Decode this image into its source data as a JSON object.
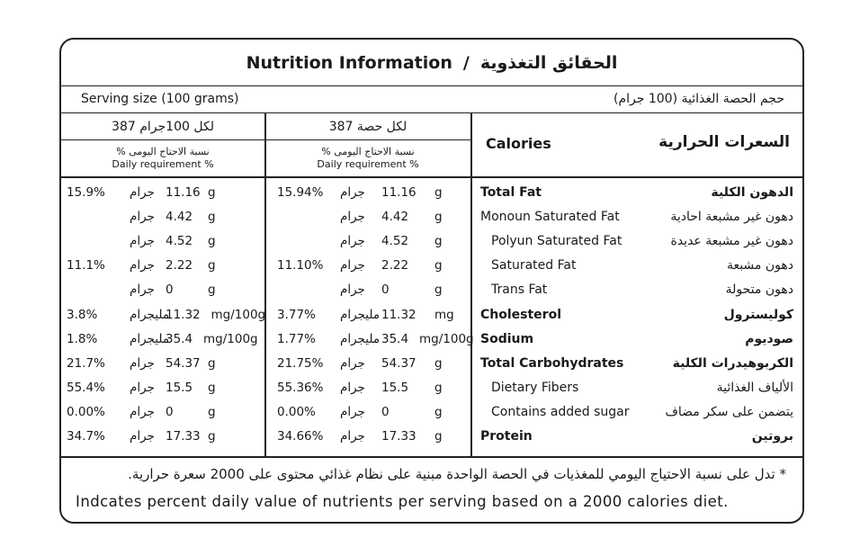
{
  "title": {
    "en": "Nutrition Information",
    "separator": "/",
    "ar": "الحقائق التغذوية"
  },
  "serving": {
    "en": "Serving size (100 grams)",
    "ar": "حجم الحصة الغذائية (100 جرام)"
  },
  "columns": {
    "per100": {
      "header": "لكل 100جرام 387",
      "sub_ar": "نسبة الاحتاج اليومى %",
      "sub_en": "Daily requirement %"
    },
    "perServing": {
      "header": "لكل حصة 387",
      "sub_ar": "نسبة الاحتاج اليومى %",
      "sub_en": "Daily requirement %"
    }
  },
  "calories": {
    "en": "Calories",
    "ar": "السعرات الحرارية"
  },
  "rows": [
    {
      "en": "Total Fat",
      "ar": "الدهون الكلية",
      "bold": true,
      "indent": false,
      "c100": {
        "pct": "15.9%",
        "unit_ar": "جرام",
        "value": "11.16",
        "unit": "g"
      },
      "cs": {
        "pct": "15.94%",
        "unit_ar": "جرام",
        "value": "11.16",
        "unit": "g"
      }
    },
    {
      "en": "Monoun Saturated Fat",
      "ar": "دهون غير مشبعة احادية",
      "bold": false,
      "indent": false,
      "c100": {
        "pct": "",
        "unit_ar": "جرام",
        "value": "4.42",
        "unit": "g"
      },
      "cs": {
        "pct": "",
        "unit_ar": "جرام",
        "value": "4.42",
        "unit": "g"
      }
    },
    {
      "en": "Polyun Saturated Fat",
      "ar": "دهون غير مشبعة عديدة",
      "bold": false,
      "indent": true,
      "c100": {
        "pct": "",
        "unit_ar": "جرام",
        "value": "4.52",
        "unit": "g"
      },
      "cs": {
        "pct": "",
        "unit_ar": "جرام",
        "value": "4.52",
        "unit": "g"
      }
    },
    {
      "en": "Saturated Fat",
      "ar": "دهون مشبعة",
      "bold": false,
      "indent": true,
      "c100": {
        "pct": "11.1%",
        "unit_ar": "جرام",
        "value": "2.22",
        "unit": "g"
      },
      "cs": {
        "pct": "11.10%",
        "unit_ar": "جرام",
        "value": "2.22",
        "unit": "g"
      }
    },
    {
      "en": "Trans Fat",
      "ar": "دهون متحولة",
      "bold": false,
      "indent": true,
      "c100": {
        "pct": "",
        "unit_ar": "جرام",
        "value": "0",
        "unit": "g"
      },
      "cs": {
        "pct": "",
        "unit_ar": "جرام",
        "value": "0",
        "unit": "g"
      }
    },
    {
      "en": "Cholesterol",
      "ar": "كوليسترول",
      "bold": true,
      "indent": false,
      "c100": {
        "pct": "3.8%",
        "unit_ar": "مليجرام",
        "value": "11.32",
        "unit": "mg/100g"
      },
      "cs": {
        "pct": "3.77%",
        "unit_ar": "مليجرام",
        "value": "11.32",
        "unit": "mg"
      }
    },
    {
      "en": "Sodium",
      "ar": "صوديوم",
      "bold": true,
      "indent": false,
      "c100": {
        "pct": "1.8%",
        "unit_ar": "مليجرام",
        "value": "35.4",
        "unit": "mg/100g"
      },
      "cs": {
        "pct": "1.77%",
        "unit_ar": "مليجرام",
        "value": "35.4",
        "unit": "mg/100g"
      }
    },
    {
      "en": "Total Carbohydrates",
      "ar": "الكربوهيدرات الكلية",
      "bold": true,
      "indent": false,
      "c100": {
        "pct": "21.7%",
        "unit_ar": "جرام",
        "value": "54.37",
        "unit": "g"
      },
      "cs": {
        "pct": "21.75%",
        "unit_ar": "جرام",
        "value": "54.37",
        "unit": "g"
      }
    },
    {
      "en": "Dietary Fibers",
      "ar": "الألياف الغذائية",
      "bold": false,
      "indent": true,
      "c100": {
        "pct": "55.4%",
        "unit_ar": "جرام",
        "value": "15.5",
        "unit": "g"
      },
      "cs": {
        "pct": "55.36%",
        "unit_ar": "جرام",
        "value": "15.5",
        "unit": "g"
      }
    },
    {
      "en": "Contains added sugar",
      "ar": "يتضمن على سكر مضاف",
      "bold": false,
      "indent": true,
      "c100": {
        "pct": "0.00%",
        "unit_ar": "جرام",
        "value": "0",
        "unit": "g"
      },
      "cs": {
        "pct": "0.00%",
        "unit_ar": "جرام",
        "value": "0",
        "unit": "g"
      }
    },
    {
      "en": "Protein",
      "ar": "بروتين",
      "bold": true,
      "indent": false,
      "c100": {
        "pct": "34.7%",
        "unit_ar": "جرام",
        "value": "17.33",
        "unit": "g"
      },
      "cs": {
        "pct": "34.66%",
        "unit_ar": "جرام",
        "value": "17.33",
        "unit": "g"
      }
    }
  ],
  "footnote": {
    "ar": "* تدل على نسبة الاحتياج اليومي للمغذيات في الحصة الواحدة مبنية على نظام غذائي محتوى على 2000 سعرة حرارية.",
    "en": "Indcates percent daily value of nutrients per serving based on a 2000 calories diet."
  }
}
